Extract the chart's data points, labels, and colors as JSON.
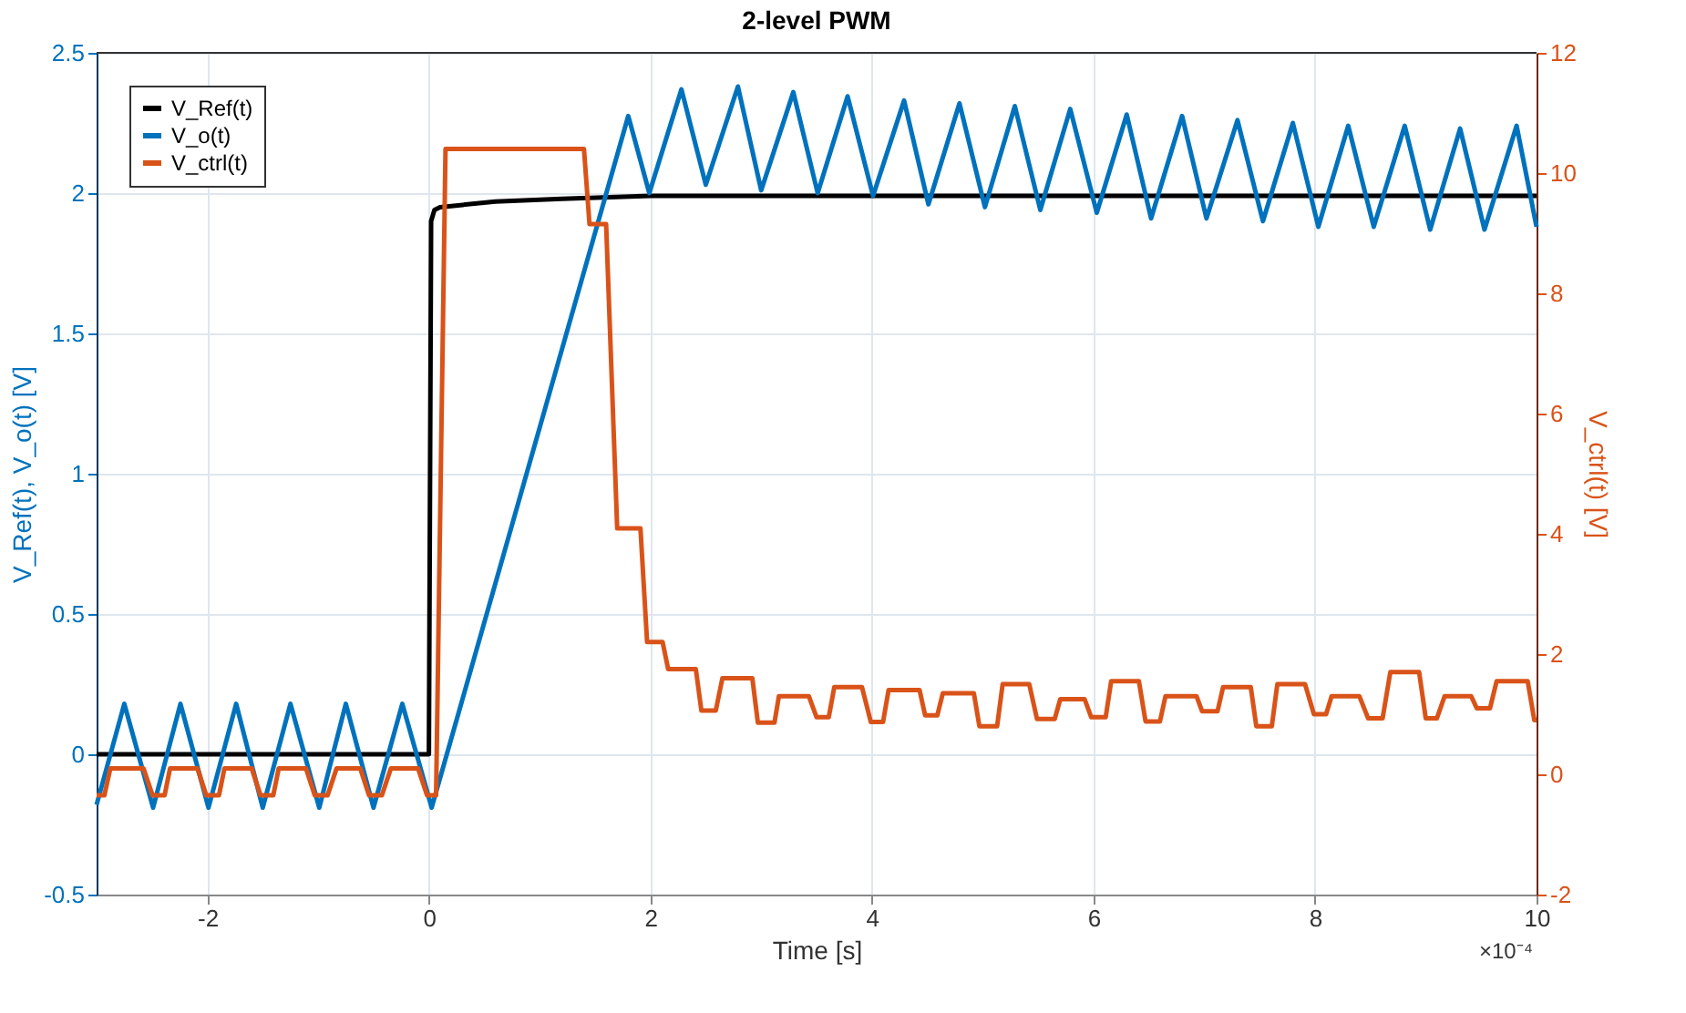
{
  "chart_data": {
    "type": "line",
    "title": "2-level PWM",
    "xlabel": "Time [s]",
    "ylabel": "V_Ref(t), V_o(t) [V]",
    "y2label": "V_ctrl(t) [V]",
    "xlim": [
      -3,
      10
    ],
    "xticks": [
      -2,
      0,
      2,
      4,
      6,
      8,
      10
    ],
    "ylim": [
      -0.5,
      2.5
    ],
    "yticks": [
      -0.5,
      0,
      0.5,
      1,
      1.5,
      2,
      2.5
    ],
    "y2lim": [
      -2,
      12
    ],
    "y2ticks": [
      -2,
      0,
      2,
      4,
      6,
      8,
      10,
      12
    ],
    "grid": true,
    "legend": "top left",
    "line_style": "solid",
    "annotations": [
      "×10⁻⁴"
    ],
    "series": [
      {
        "name": "V_Ref(t)",
        "color": "#000000",
        "x": [
          -3,
          0.0,
          0.02,
          0.05,
          0.1,
          0.6,
          1.2,
          2,
          10
        ],
        "values": [
          0,
          0,
          1.9,
          1.94,
          1.95,
          1.97,
          1.98,
          1.99,
          1.99
        ]
      },
      {
        "name": "V_o(t)",
        "color": "#0072bd",
        "x": [
          -3,
          -2.75,
          -2.49,
          -2.243,
          -1.99,
          -1.74,
          -1.5,
          -1.25,
          -0.99,
          -0.75,
          -0.5,
          -0.24,
          0.025,
          1.8,
          1.99,
          2.28,
          2.5,
          2.79,
          3.0,
          3.29,
          3.51,
          3.78,
          4.01,
          4.29,
          4.51,
          4.79,
          5.02,
          5.29,
          5.52,
          5.79,
          6.03,
          6.3,
          6.52,
          6.8,
          7.02,
          7.3,
          7.53,
          7.8,
          8.03,
          8.3,
          8.53,
          8.81,
          9.04,
          9.31,
          9.53,
          9.82,
          10
        ],
        "values": [
          -0.18,
          0.18,
          -0.19,
          0.18,
          -0.19,
          0.18,
          -0.19,
          0.18,
          -0.19,
          0.18,
          -0.19,
          0.18,
          -0.19,
          2.275,
          2.0,
          2.37,
          2.03,
          2.38,
          2.01,
          2.36,
          2.0,
          2.345,
          1.99,
          2.33,
          1.96,
          2.32,
          1.95,
          2.31,
          1.94,
          2.3,
          1.93,
          2.28,
          1.91,
          2.275,
          1.91,
          2.26,
          1.9,
          2.25,
          1.88,
          2.24,
          1.88,
          2.24,
          1.87,
          2.23,
          1.87,
          2.24,
          1.88
        ]
      },
      {
        "name": "V_ctrl(t)",
        "color": "#d95319",
        "axis": "y2",
        "x": [
          -3,
          -2.93,
          -2.876,
          -2.577,
          -2.495,
          -2.386,
          -2.337,
          -2.09,
          -2.01,
          -1.895,
          -1.846,
          -1.6,
          -1.52,
          -1.405,
          -1.356,
          -1.11,
          -1.03,
          -0.915,
          -0.833,
          -0.62,
          -0.54,
          -0.425,
          -0.343,
          -0.098,
          -0.016,
          0.065,
          0.15,
          1.4,
          1.45,
          1.6,
          1.7,
          1.91,
          1.97,
          2.11,
          2.16,
          2.41,
          2.46,
          2.59,
          2.65,
          2.92,
          2.97,
          3.12,
          3.16,
          3.43,
          3.5,
          3.61,
          3.66,
          3.91,
          3.99,
          4.1,
          4.15,
          4.43,
          4.48,
          4.59,
          4.64,
          4.92,
          4.97,
          5.13,
          5.18,
          5.42,
          5.49,
          5.65,
          5.7,
          5.92,
          5.98,
          6.11,
          6.16,
          6.41,
          6.47,
          6.6,
          6.65,
          6.93,
          6.98,
          7.12,
          7.17,
          7.42,
          7.47,
          7.61,
          7.66,
          7.91,
          7.99,
          8.1,
          8.15,
          8.4,
          8.48,
          8.61,
          8.68,
          8.94,
          9.0,
          9.1,
          9.17,
          9.41,
          9.46,
          9.58,
          9.64,
          9.92,
          9.98,
          10
        ],
        "values": [
          -0.35,
          -0.35,
          0.1,
          0.1,
          -0.35,
          -0.35,
          0.1,
          0.1,
          -0.35,
          -0.35,
          0.1,
          0.1,
          -0.35,
          -0.35,
          0.1,
          0.1,
          -0.35,
          -0.35,
          0.1,
          0.1,
          -0.35,
          -0.35,
          0.1,
          0.1,
          -0.35,
          -0.35,
          10.4,
          10.4,
          9.15,
          9.15,
          4.09,
          4.09,
          2.2,
          2.2,
          1.75,
          1.75,
          1.06,
          1.06,
          1.6,
          1.6,
          0.86,
          0.86,
          1.3,
          1.3,
          0.95,
          0.95,
          1.45,
          1.45,
          0.87,
          0.87,
          1.4,
          1.4,
          0.98,
          0.98,
          1.35,
          1.35,
          0.8,
          0.8,
          1.5,
          1.5,
          0.92,
          0.92,
          1.25,
          1.25,
          0.95,
          0.95,
          1.55,
          1.55,
          0.88,
          0.88,
          1.3,
          1.3,
          1.05,
          1.05,
          1.45,
          1.45,
          0.8,
          0.8,
          1.5,
          1.5,
          1.0,
          1.0,
          1.3,
          1.3,
          0.93,
          0.93,
          1.7,
          1.7,
          0.93,
          0.93,
          1.3,
          1.3,
          1.1,
          1.1,
          1.55,
          1.55,
          0.9,
          0.9
        ]
      }
    ]
  }
}
